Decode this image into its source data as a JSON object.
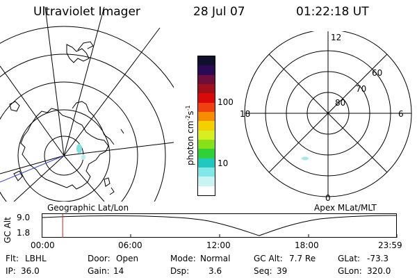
{
  "header": {
    "instrument": "Ultraviolet Imager",
    "date": "28 Jul 07",
    "time": "01:22:18 UT"
  },
  "colorbar": {
    "unit_label": "photon cm",
    "exp1": "-2",
    "unit_mid": "s",
    "exp2": "-1",
    "ticks": [
      "100",
      "10"
    ],
    "colors": [
      "#10102a",
      "#2a0a55",
      "#6e0e3a",
      "#a0101a",
      "#d80a0a",
      "#f04010",
      "#f88c00",
      "#f5d000",
      "#d6ef20",
      "#88e018",
      "#30d038",
      "#20c8c0",
      "#80e8e8",
      "#c8f4f4",
      "#ffffff"
    ]
  },
  "left_map": {
    "label": "Geographic Lat/Lon"
  },
  "right_map": {
    "label": "Apex  MLat/MLT",
    "mlt_labels": [
      "12",
      "18",
      "6",
      "0"
    ],
    "lat_labels": [
      "60",
      "70",
      "80"
    ]
  },
  "timeline": {
    "axis_label": "GC Alt",
    "y_ticks": [
      "9.0",
      "1.8"
    ],
    "x_ticks": [
      "00:00",
      "06:00",
      "12:00",
      "18:00",
      "23:59"
    ],
    "marker_hours": 1.372
  },
  "info": {
    "row1": [
      {
        "label": "Flt:",
        "value": "LBHL"
      },
      {
        "label": "Door:",
        "value": "Open"
      },
      {
        "label": "Mode:",
        "value": "Normal"
      },
      {
        "label": "GC Alt:",
        "value": "7.7 Re"
      },
      {
        "label": "GLat:",
        "value": "-73.3"
      }
    ],
    "row2": [
      {
        "label": "IP:",
        "value": "36.0"
      },
      {
        "label": "Gain:",
        "value": "14"
      },
      {
        "label": "Dsp:",
        "value": "3.6"
      },
      {
        "label": "Seq:",
        "value": "39"
      },
      {
        "label": "GLon:",
        "value": "320.0"
      }
    ]
  },
  "colors": {
    "marker": "#cc2222",
    "aurora": "#7fe0e0"
  }
}
